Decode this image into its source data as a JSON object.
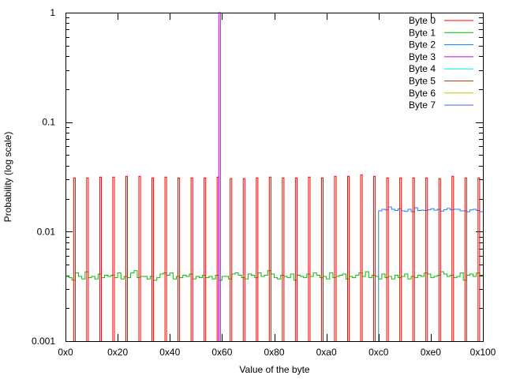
{
  "chart_data": {
    "type": "line",
    "title": "",
    "xlabel": "Value of the byte",
    "ylabel": "Probability (log scale)",
    "xlim": [
      0,
      256
    ],
    "ylim": [
      0.001,
      1
    ],
    "yscale": "log",
    "x_ticks": [
      {
        "value": 0,
        "label": "0x0"
      },
      {
        "value": 32,
        "label": "0x20"
      },
      {
        "value": 64,
        "label": "0x40"
      },
      {
        "value": 96,
        "label": "0x60"
      },
      {
        "value": 128,
        "label": "0x80"
      },
      {
        "value": 160,
        "label": "0xa0"
      },
      {
        "value": 192,
        "label": "0xc0"
      },
      {
        "value": 224,
        "label": "0xe0"
      },
      {
        "value": 256,
        "label": "0x100"
      }
    ],
    "y_ticks": [
      {
        "value": 1,
        "label": "1"
      },
      {
        "value": 0.1,
        "label": "0.1"
      },
      {
        "value": 0.01,
        "label": "0.01"
      },
      {
        "value": 0.001,
        "label": "0.001"
      }
    ],
    "legend_position": "top-right",
    "legend": [
      {
        "name": "Byte 0",
        "color": "#ff0000"
      },
      {
        "name": "Byte 1",
        "color": "#00c000"
      },
      {
        "name": "Byte 2",
        "color": "#0080ff"
      },
      {
        "name": "Byte 3",
        "color": "#c000ff"
      },
      {
        "name": "Byte 4",
        "color": "#00eeee"
      },
      {
        "name": "Byte 5",
        "color": "#c04000"
      },
      {
        "name": "Byte 6",
        "color": "#c8c800"
      },
      {
        "name": "Byte 7",
        "color": "#4169e1"
      }
    ],
    "series": {
      "byte0_spikes": {
        "color": "#ff0000",
        "x_start": 5,
        "x_step": 8,
        "width": 1,
        "values": [
          0.031,
          0.031,
          0.0315,
          0.0315,
          0.032,
          0.032,
          0.031,
          0.0315,
          0.031,
          0.031,
          0.031,
          0.0315,
          0.0305,
          0.0305,
          0.031,
          0.0315,
          0.031,
          0.031,
          0.0315,
          0.031,
          0.032,
          0.032,
          0.033,
          0.032,
          0.031,
          0.031,
          0.031,
          0.031,
          0.0305,
          0.032,
          0.031,
          0.031
        ]
      },
      "byte1_noise": {
        "color": "#00c000",
        "x_start": 0,
        "x_step": 2,
        "values": [
          0.0039,
          0.0038,
          0.0036,
          0.0042,
          0.0039,
          0.0037,
          0.0043,
          0.0038,
          0.0039,
          0.0037,
          0.0041,
          0.0038,
          0.004,
          0.0039,
          0.004,
          0.0038,
          0.0042,
          0.0037,
          0.0039,
          0.0038,
          0.0042,
          0.0044,
          0.0038,
          0.0039,
          0.0039,
          0.0037,
          0.0039,
          0.0036,
          0.0038,
          0.0041,
          0.0042,
          0.004,
          0.0042,
          0.0037,
          0.0039,
          0.0038,
          0.004,
          0.0039,
          0.0041,
          0.0037,
          0.0039,
          0.0038,
          0.004,
          0.0038,
          0.0039,
          0.0037,
          0.004,
          0.0036,
          0.0039,
          0.0039,
          0.0037,
          0.0041,
          0.0042,
          0.004,
          0.0038,
          0.0037,
          0.0041,
          0.004,
          0.0038,
          0.0042,
          0.0039,
          0.004,
          0.0044,
          0.0041,
          0.0038,
          0.0037,
          0.004,
          0.0039,
          0.0038,
          0.0041,
          0.0036,
          0.004,
          0.0039,
          0.0038,
          0.0041,
          0.0039,
          0.0042,
          0.004,
          0.0038,
          0.0039,
          0.0037,
          0.0042,
          0.0038,
          0.0039,
          0.004,
          0.0041,
          0.0037,
          0.0039,
          0.0038,
          0.004,
          0.0042,
          0.0039,
          0.0043,
          0.0038,
          0.004,
          0.0039,
          0.0037,
          0.0041,
          0.0038,
          0.0039,
          0.0037,
          0.004,
          0.0038,
          0.0039,
          0.0041,
          0.0037,
          0.0039,
          0.0038,
          0.004,
          0.0039,
          0.0042,
          0.0041,
          0.0038,
          0.0039,
          0.004,
          0.0043,
          0.0041,
          0.0039,
          0.004,
          0.0038,
          0.0039,
          0.0042,
          0.0036,
          0.004,
          0.0041,
          0.0039,
          0.0042,
          0.004
        ]
      },
      "byte3_spike": {
        "color": "#c000ff",
        "x": 94,
        "width": 1,
        "value": 1
      },
      "byte7_noise": {
        "color": "#1e80ff",
        "x_start": 192,
        "x_step": 2,
        "values": [
          0.0155,
          0.016,
          0.0158,
          0.0168,
          0.016,
          0.0156,
          0.0162,
          0.0155,
          0.0153,
          0.016,
          0.0152,
          0.0165,
          0.0156,
          0.0157,
          0.0156,
          0.0158,
          0.0162,
          0.0157,
          0.016,
          0.0154,
          0.0159,
          0.0163,
          0.0158,
          0.016,
          0.016,
          0.0155,
          0.0155,
          0.0152,
          0.0158,
          0.016,
          0.0156,
          0.0152
        ]
      }
    }
  }
}
